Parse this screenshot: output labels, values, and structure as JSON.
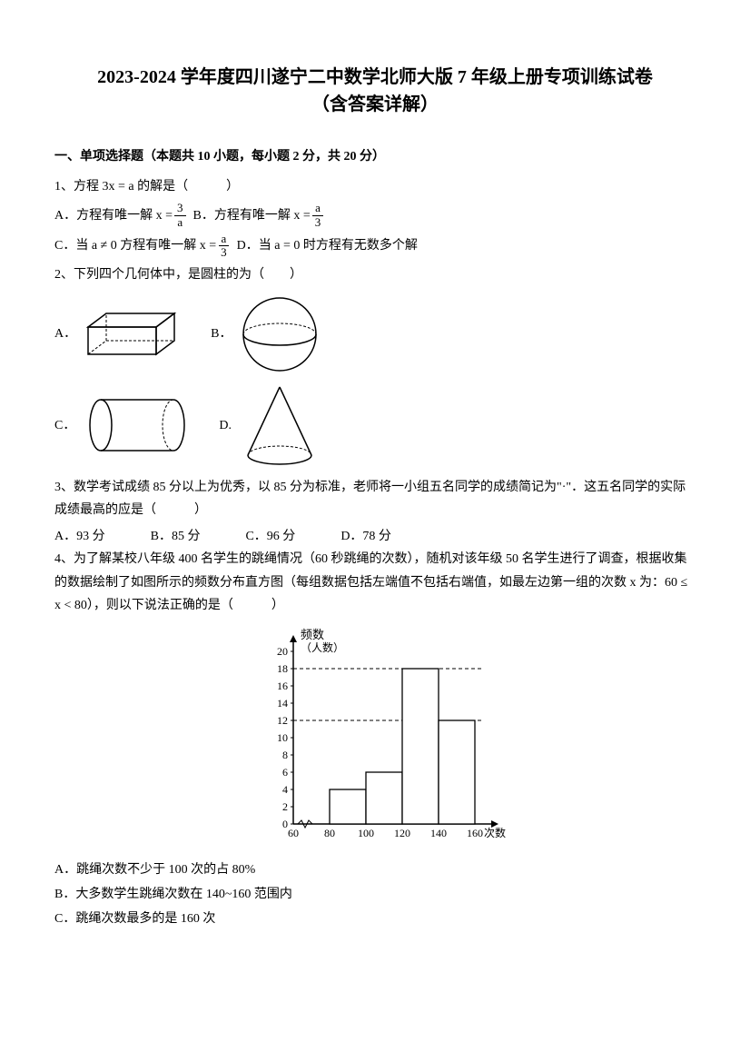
{
  "title_line1": "2023-2024 学年度四川遂宁二中数学北师大版 7 年级上册专项训练试卷",
  "title_line2": "（含答案详解）",
  "section1_header": "一、单项选择题（本题共 10 小题，每小题 2 分，共 20 分）",
  "q1": {
    "stem": "1、方程 3x = a 的解是（　　　）",
    "optA_pre": "A．方程有唯一解 x = ",
    "optA_frac_num": "3",
    "optA_frac_den": "a",
    "optB_pre": " B．方程有唯一解 x = ",
    "optB_frac_num": "a",
    "optB_frac_den": "3",
    "optC_pre": "C．当 a ≠ 0 方程有唯一解 x = ",
    "optC_frac_num": "a",
    "optC_frac_den": "3",
    "optD": " D．当 a = 0 时方程有无数多个解"
  },
  "q2": {
    "stem": "2、下列四个几何体中，是圆柱的为（　　）",
    "labelA": "A．",
    "labelB": "B．",
    "labelC": "C．",
    "labelD": "D.",
    "shapes": {
      "cuboid": {
        "stroke": "#000000",
        "fill": "#ffffff"
      },
      "sphere": {
        "stroke": "#000000",
        "fill": "#ffffff"
      },
      "cylinder": {
        "stroke": "#000000",
        "fill": "#ffffff"
      },
      "cone": {
        "stroke": "#000000",
        "fill": "#ffffff"
      }
    }
  },
  "q3": {
    "stem": "3、数学考试成绩 85 分以上为优秀，以 85 分为标准，老师将一小组五名同学的成绩简记为\"·\"．这五名同学的实际成绩最高的应是（　　　）",
    "optA": "A．93 分",
    "optB": "B．85 分",
    "optC": "C．96 分",
    "optD": "D．78 分"
  },
  "q4": {
    "stem": "4、为了解某校八年级 400 名学生的跳绳情况（60 秒跳绳的次数），随机对该年级 50 名学生进行了调查，根据收集的数据绘制了如图所示的频数分布直方图（每组数据包括左端值不包括右端值，如最左边第一组的次数 x 为：60 ≤ x < 80），则以下说法正确的是（　　　）",
    "chart": {
      "type": "histogram",
      "y_title": "频数",
      "y_subtitle": "（人数）",
      "x_label": "次数",
      "x_ticks": [
        "60",
        "80",
        "100",
        "120",
        "140",
        "160"
      ],
      "y_ticks": [
        0,
        2,
        4,
        6,
        8,
        10,
        12,
        14,
        16,
        18,
        20
      ],
      "ylim": [
        0,
        20
      ],
      "bars": [
        {
          "x_start": 80,
          "x_end": 100,
          "value": 4
        },
        {
          "x_start": 100,
          "x_end": 120,
          "value": 6
        },
        {
          "x_start": 120,
          "x_end": 140,
          "value": 18
        },
        {
          "x_start": 140,
          "x_end": 160,
          "value": 12
        }
      ],
      "dashed_lines_y": [
        12,
        18
      ],
      "bar_fill": "#ffffff",
      "bar_stroke": "#000000",
      "axis_color": "#000000",
      "font_size": 12
    },
    "optA": "A．跳绳次数不少于 100 次的占 80%",
    "optB": "B．大多数学生跳绳次数在 140~160 范围内",
    "optC": "C．跳绳次数最多的是 160 次"
  }
}
